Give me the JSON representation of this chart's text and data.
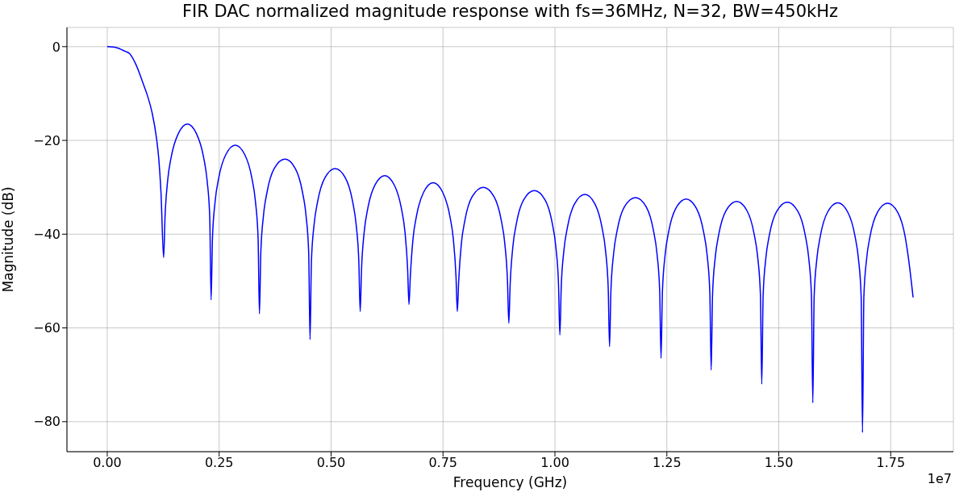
{
  "chart_data": {
    "type": "line",
    "title": "FIR DAC normalized magnitude response with fs=36MHz, N=32, BW=450kHz",
    "xlabel": "Frequency (GHz)",
    "ylabel": "Magnitude (dB)",
    "annotations": [
      "1e7"
    ],
    "x": [
      0,
      0.02,
      0.04,
      0.05,
      0.065,
      0.08,
      0.09,
      0.1,
      0.11,
      0.115,
      0.12,
      0.126,
      0.129,
      0.135,
      0.143,
      0.159,
      0.179,
      0.199,
      0.215,
      0.223,
      0.229,
      0.232,
      0.235,
      0.241,
      0.249,
      0.265,
      0.286,
      0.307,
      0.323,
      0.331,
      0.337,
      0.34,
      0.343,
      0.349,
      0.357,
      0.373,
      0.397,
      0.42,
      0.436,
      0.444,
      0.45,
      0.453,
      0.456,
      0.462,
      0.47,
      0.486,
      0.509,
      0.532,
      0.548,
      0.556,
      0.562,
      0.565,
      0.568,
      0.574,
      0.582,
      0.598,
      0.62,
      0.641,
      0.657,
      0.665,
      0.671,
      0.674,
      0.677,
      0.683,
      0.691,
      0.707,
      0.728,
      0.749,
      0.765,
      0.773,
      0.779,
      0.782,
      0.785,
      0.791,
      0.799,
      0.815,
      0.84,
      0.864,
      0.88,
      0.888,
      0.894,
      0.897,
      0.9,
      0.906,
      0.914,
      0.93,
      0.954,
      0.978,
      0.994,
      1.002,
      1.008,
      1.011,
      1.014,
      1.02,
      1.028,
      1.044,
      1.067,
      1.089,
      1.105,
      1.113,
      1.119,
      1.122,
      1.125,
      1.131,
      1.139,
      1.155,
      1.18,
      1.204,
      1.22,
      1.228,
      1.234,
      1.237,
      1.24,
      1.246,
      1.254,
      1.27,
      1.293,
      1.316,
      1.332,
      1.34,
      1.346,
      1.349,
      1.352,
      1.358,
      1.366,
      1.382,
      1.406,
      1.429,
      1.445,
      1.453,
      1.459,
      1.462,
      1.465,
      1.471,
      1.479,
      1.495,
      1.519,
      1.543,
      1.559,
      1.567,
      1.573,
      1.576,
      1.579,
      1.585,
      1.593,
      1.609,
      1.632,
      1.654,
      1.67,
      1.678,
      1.684,
      1.687,
      1.69,
      1.696,
      1.704,
      1.72,
      1.743,
      1.766,
      1.782,
      1.79,
      1.8
    ],
    "series": [
      {
        "color": "#0000ff",
        "values": [
          0,
          -0.2,
          -1,
          -1.5,
          -4,
          -7.8,
          -10.5,
          -14,
          -19.5,
          -23.8,
          -31,
          -45,
          -36.5,
          -28.5,
          -23.5,
          -18.5,
          -16.5,
          -18.5,
          -23.5,
          -28.5,
          -36.5,
          -54,
          -41,
          -33,
          -28,
          -23,
          -21,
          -23,
          -28,
          -33,
          -41,
          -57,
          -44,
          -36,
          -31,
          -26,
          -24,
          -26,
          -31,
          -36,
          -44,
          -62.5,
          -46,
          -38,
          -33,
          -28,
          -26,
          -28,
          -33,
          -38,
          -46,
          -56.5,
          -47.5,
          -39.5,
          -34.5,
          -29.5,
          -27.5,
          -29.5,
          -34.5,
          -39.5,
          -47.5,
          -55,
          -49,
          -41,
          -36,
          -31,
          -29,
          -31,
          -36,
          -41,
          -49,
          -56.5,
          -50,
          -42,
          -37,
          -32,
          -30,
          -32,
          -37,
          -42,
          -50,
          -59,
          -50.7,
          -42.7,
          -37.7,
          -32.7,
          -30.7,
          -32.7,
          -37.7,
          -42.7,
          -50.7,
          -61.5,
          -51.5,
          -43.5,
          -38.5,
          -33.5,
          -31.5,
          -33.5,
          -38.5,
          -43.5,
          -51.5,
          -64,
          -52.2,
          -44.2,
          -39.2,
          -34.2,
          -32.2,
          -34.2,
          -39.2,
          -44.2,
          -52.2,
          -66.5,
          -52.5,
          -44.5,
          -39.5,
          -34.5,
          -32.5,
          -34.5,
          -39.5,
          -44.5,
          -52.5,
          -69,
          -53,
          -45,
          -40,
          -35,
          -33,
          -35,
          -40,
          -45,
          -53,
          -72,
          -53.2,
          -45.2,
          -40.2,
          -35.2,
          -33.2,
          -35.2,
          -40.2,
          -45.2,
          -53.2,
          -76,
          -53.3,
          -45.3,
          -40.3,
          -35.3,
          -33.3,
          -35.3,
          -40.3,
          -45.3,
          -53.3,
          -82.3,
          -53.4,
          -45.4,
          -40.4,
          -35.4,
          -33.4,
          -35.4,
          -40.4,
          -45.4,
          -53.5
        ]
      }
    ],
    "xlim": [
      -0.09,
      1.89
    ],
    "xticks": [
      {
        "value": 0,
        "label": "0.00"
      },
      0.25,
      {
        "value": 0.5,
        "label": "0.50"
      },
      0.75,
      {
        "value": 1,
        "label": "1.00"
      },
      1.25,
      {
        "value": 1.5,
        "label": "1.50"
      },
      1.75
    ],
    "ylim": [
      -86.4,
      4.1
    ],
    "yticks": [
      {
        "value": -80,
        "label": "−80"
      },
      {
        "value": -60,
        "label": "−60"
      },
      {
        "value": -40,
        "label": "−40"
      },
      {
        "value": -20,
        "label": "−20"
      },
      0
    ],
    "grid": true,
    "marker": "none",
    "line_style": "solid"
  }
}
